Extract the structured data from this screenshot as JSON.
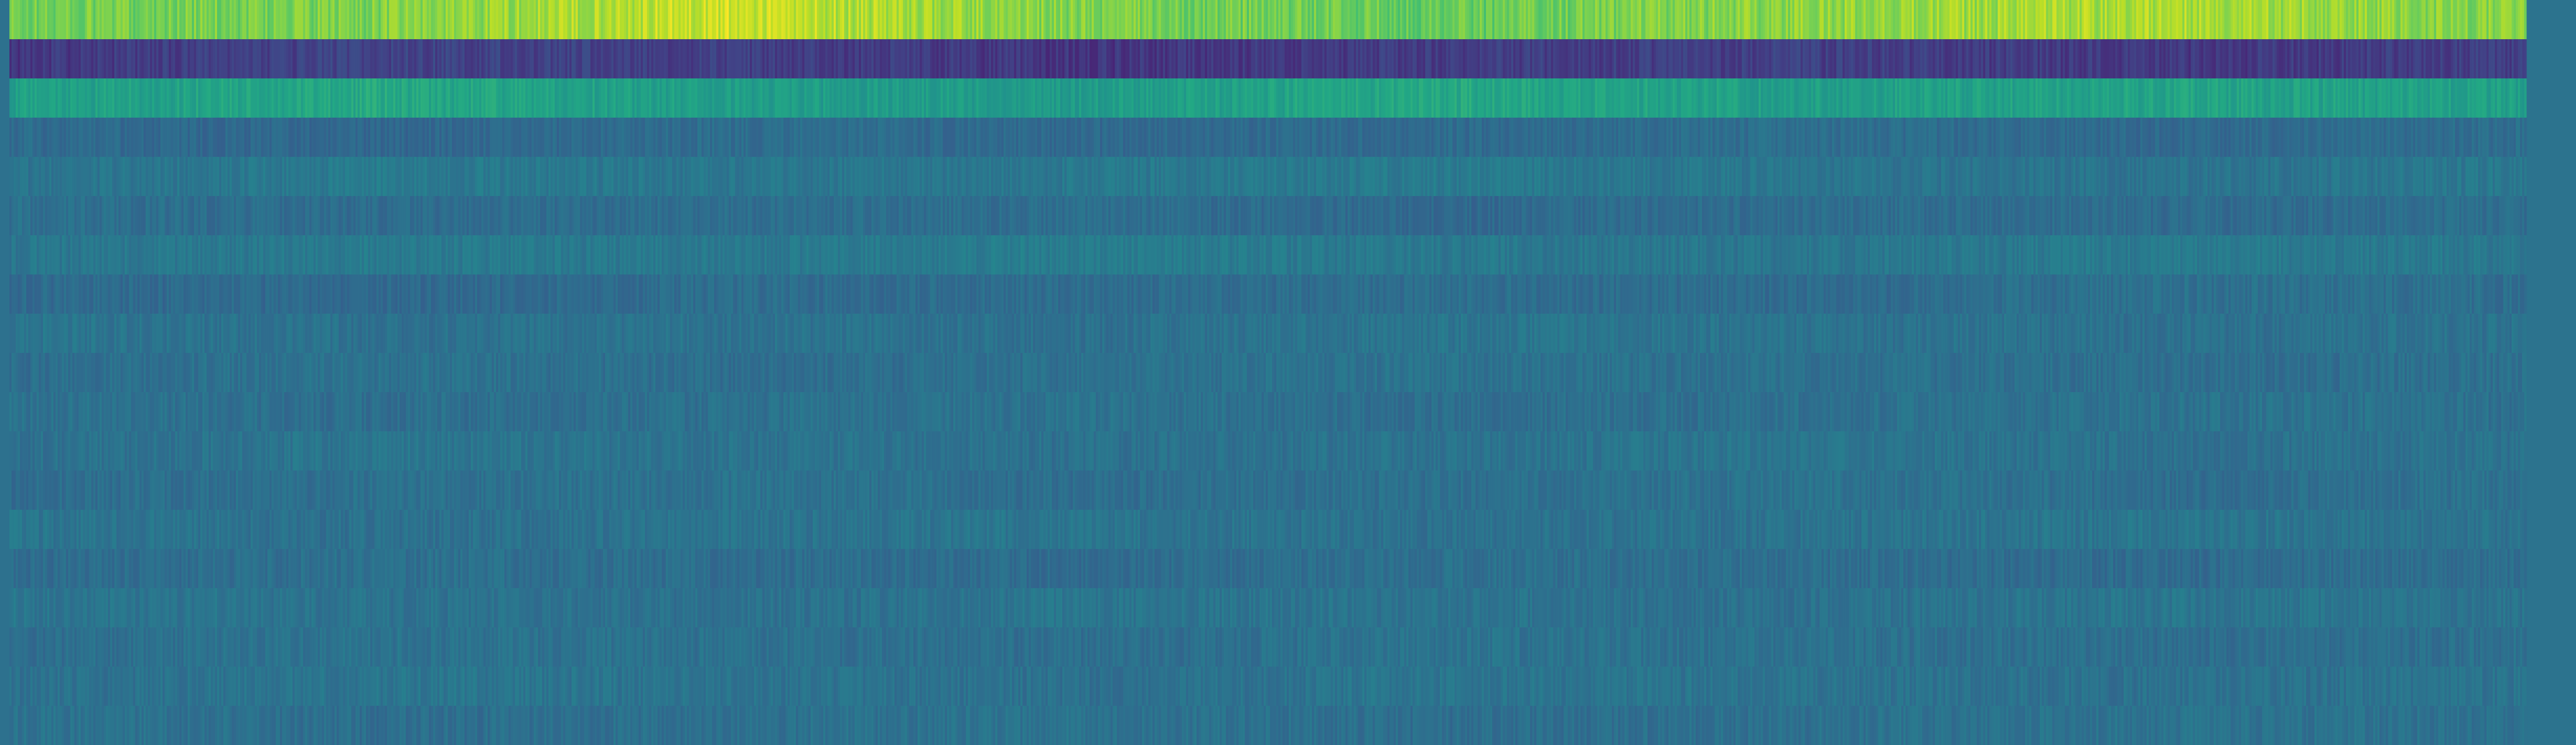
{
  "chart_data": {
    "type": "heatmap",
    "colormap": "viridis",
    "title": "",
    "xlabel": "",
    "ylabel": "",
    "rows": [
      {
        "level": 0.85,
        "variation": 0.07,
        "pattern": [
          0.78,
          0.8,
          0.93,
          0.8,
          0.76,
          0.83,
          0.88,
          0.8
        ]
      },
      {
        "level": 0.18,
        "variation": 0.05,
        "pattern": [
          0.16,
          0.2,
          0.19,
          0.15,
          0.18,
          0.19,
          0.16,
          0.19
        ]
      },
      {
        "level": 0.57,
        "variation": 0.05,
        "pattern": [
          0.56,
          0.6,
          0.55,
          0.55,
          0.6,
          0.56,
          0.58,
          0.56
        ]
      },
      {
        "level": 0.36,
        "variation": 0.04,
        "pattern": [
          0.35,
          0.33,
          0.36,
          0.34,
          0.35,
          0.36,
          0.34,
          0.36
        ]
      },
      {
        "level": 0.39,
        "variation": 0.04,
        "pattern": [
          0.38,
          0.41,
          0.39,
          0.4,
          0.41,
          0.39,
          0.38,
          0.4
        ]
      },
      {
        "level": 0.36,
        "variation": 0.04,
        "pattern": [
          0.37,
          0.35,
          0.36,
          0.36,
          0.34,
          0.36,
          0.35,
          0.36
        ]
      },
      {
        "level": 0.4,
        "variation": 0.04,
        "pattern": [
          0.39,
          0.41,
          0.4,
          0.42,
          0.4,
          0.39,
          0.41,
          0.4
        ]
      },
      {
        "level": 0.36,
        "variation": 0.04,
        "pattern": [
          0.35,
          0.34,
          0.36,
          0.35,
          0.36,
          0.35,
          0.37,
          0.36
        ]
      },
      {
        "level": 0.38,
        "variation": 0.04,
        "pattern": [
          0.39,
          0.37,
          0.38,
          0.37,
          0.39,
          0.38,
          0.37,
          0.38
        ]
      },
      {
        "level": 0.37,
        "variation": 0.04,
        "pattern": [
          0.36,
          0.38,
          0.36,
          0.37,
          0.38,
          0.37,
          0.36,
          0.37
        ]
      },
      {
        "level": 0.37,
        "variation": 0.04,
        "pattern": [
          0.38,
          0.36,
          0.37,
          0.38,
          0.36,
          0.37,
          0.38,
          0.37
        ]
      },
      {
        "level": 0.38,
        "variation": 0.04,
        "pattern": [
          0.37,
          0.39,
          0.38,
          0.37,
          0.38,
          0.39,
          0.37,
          0.38
        ]
      },
      {
        "level": 0.37,
        "variation": 0.04,
        "pattern": [
          0.36,
          0.37,
          0.38,
          0.36,
          0.37,
          0.38,
          0.36,
          0.37
        ]
      },
      {
        "level": 0.38,
        "variation": 0.04,
        "pattern": [
          0.39,
          0.37,
          0.38,
          0.39,
          0.37,
          0.38,
          0.39,
          0.38
        ]
      },
      {
        "level": 0.36,
        "variation": 0.04,
        "pattern": [
          0.35,
          0.37,
          0.36,
          0.35,
          0.37,
          0.36,
          0.35,
          0.36
        ]
      },
      {
        "level": 0.38,
        "variation": 0.04,
        "pattern": [
          0.39,
          0.38,
          0.37,
          0.39,
          0.38,
          0.37,
          0.39,
          0.38
        ]
      },
      {
        "level": 0.37,
        "variation": 0.04,
        "pattern": [
          0.36,
          0.38,
          0.37,
          0.36,
          0.38,
          0.37,
          0.36,
          0.37
        ]
      },
      {
        "level": 0.38,
        "variation": 0.04,
        "pattern": [
          0.37,
          0.39,
          0.38,
          0.37,
          0.39,
          0.38,
          0.37,
          0.38
        ]
      },
      {
        "level": 0.37,
        "variation": 0.04,
        "pattern": [
          0.38,
          0.36,
          0.37,
          0.38,
          0.36,
          0.37,
          0.38,
          0.37
        ]
      }
    ],
    "colorbar_strip_value": 0.38,
    "background_value": 0.38
  }
}
